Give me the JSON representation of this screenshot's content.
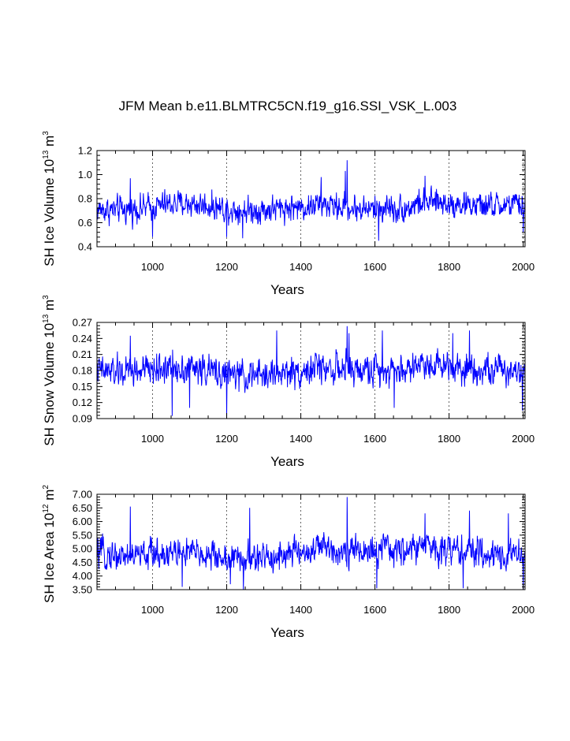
{
  "title": "JFM Mean b.e11.BLMTRC5CN.f19_g16.SSI_VSK_L.003",
  "colors": {
    "line": "#0000ff",
    "axis": "#000000",
    "grid": "#000000"
  },
  "chart_data": [
    {
      "type": "line",
      "title": "JFM Mean b.e11.BLMTRC5CN.f19_g16.SSI_VSK_L.003",
      "xlabel": "Years",
      "ylabel": {
        "prefix": "SH Ice Volume 10",
        "exp": "13",
        "unit": " m",
        "unit_exp": "3"
      },
      "xlim": [
        850,
        2005
      ],
      "ylim": [
        0.4,
        1.2
      ],
      "xticks": [
        "1000",
        "1200",
        "1400",
        "1600",
        "1800",
        "2000"
      ],
      "yticks": [
        "0.4",
        "0.6",
        "0.8",
        "1.0",
        "1.2"
      ],
      "grid": "dashed vertical at labeled years",
      "series": [
        {
          "mean": 0.72,
          "amp": 0.085,
          "peaks": [
            [
              1525,
              1.12
            ],
            [
              1520,
              1.03
            ],
            [
              1455,
              0.98
            ],
            [
              1000,
              0.98
            ],
            [
              940,
              0.97
            ],
            [
              1735,
              0.99
            ]
          ],
          "dips": [
            [
              1000,
              0.48
            ],
            [
              1200,
              0.48
            ],
            [
              1243,
              0.47
            ],
            [
              1610,
              0.45
            ],
            [
              2000,
              0.52
            ]
          ]
        }
      ]
    },
    {
      "type": "line",
      "title": "",
      "xlabel": "Years",
      "ylabel": {
        "prefix": "SH Snow Volume 10",
        "exp": "13",
        "unit": " m",
        "unit_exp": "3"
      },
      "xlim": [
        850,
        2005
      ],
      "ylim": [
        0.09,
        0.27
      ],
      "xticks": [
        "1000",
        "1200",
        "1400",
        "1600",
        "1800",
        "2000"
      ],
      "yticks": [
        "0.09",
        "0.12",
        "0.15",
        "0.18",
        "0.21",
        "0.24",
        "0.27"
      ],
      "grid": "dashed vertical at labeled years",
      "series": [
        {
          "mean": 0.178,
          "amp": 0.022,
          "peaks": [
            [
              1525,
              0.263
            ],
            [
              1530,
              0.25
            ],
            [
              1620,
              0.255
            ],
            [
              1810,
              0.25
            ],
            [
              1855,
              0.255
            ],
            [
              1335,
              0.255
            ],
            [
              940,
              0.245
            ]
          ],
          "dips": [
            [
              1053,
              0.095
            ],
            [
              1200,
              0.09
            ],
            [
              1998,
              0.105
            ],
            [
              1100,
              0.11
            ],
            [
              1652,
              0.11
            ]
          ]
        }
      ]
    },
    {
      "type": "line",
      "title": "",
      "xlabel": "Years",
      "ylabel": {
        "prefix": "SH Ice Area 10",
        "exp": "12",
        "unit": " m",
        "unit_exp": "2"
      },
      "xlim": [
        850,
        2005
      ],
      "ylim": [
        3.5,
        7.0
      ],
      "xticks": [
        "1000",
        "1200",
        "1400",
        "1600",
        "1800",
        "2000"
      ],
      "yticks": [
        "3.50",
        "4.00",
        "4.50",
        "5.00",
        "5.50",
        "6.00",
        "6.50",
        "7.00"
      ],
      "grid": "dashed vertical at labeled years",
      "series": [
        {
          "mean": 4.8,
          "amp": 0.42,
          "peaks": [
            [
              1525,
              6.9
            ],
            [
              940,
              6.55
            ],
            [
              1262,
              6.5
            ],
            [
              1855,
              6.4
            ],
            [
              1735,
              6.3
            ],
            [
              1960,
              6.3
            ]
          ],
          "dips": [
            [
              1210,
              3.7
            ],
            [
              1245,
              3.5
            ],
            [
              1605,
              3.55
            ],
            [
              1838,
              3.55
            ],
            [
              2000,
              3.5
            ],
            [
              1080,
              3.6
            ]
          ]
        }
      ]
    }
  ]
}
